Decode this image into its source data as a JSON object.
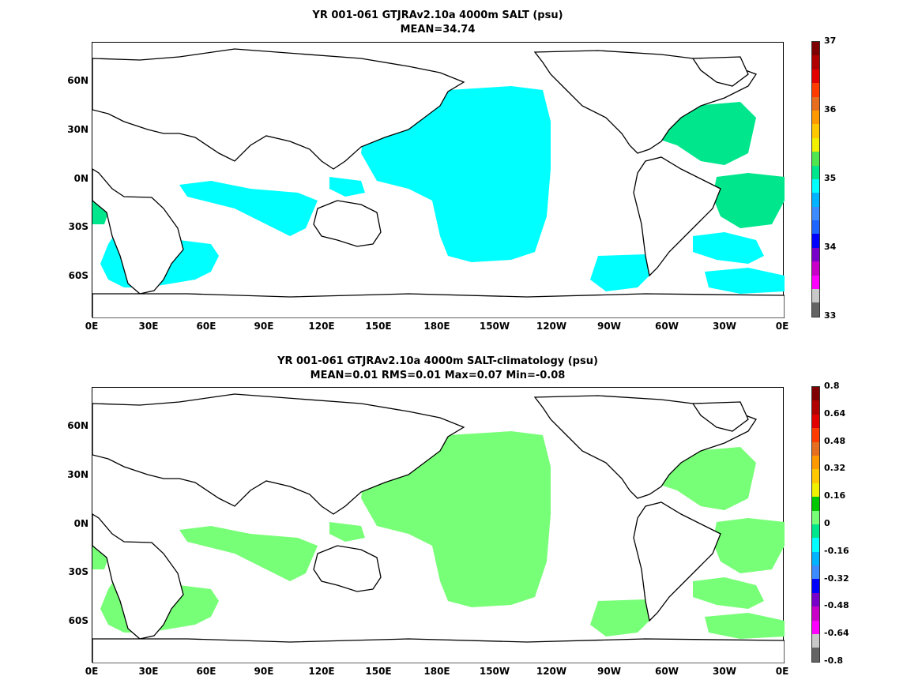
{
  "panels": [
    {
      "title_line1": "YR 001-061 GTJRAv2.10a 4000m SALT (psu)",
      "title_line2": "MEAN=34.74",
      "colorbar_labels": [
        "37",
        "36",
        "35",
        "34",
        "33"
      ],
      "colorbar_colors": [
        "#7f0000",
        "#b00000",
        "#e30000",
        "#ff3c00",
        "#e66e1e",
        "#ff9900",
        "#ffc800",
        "#f0f000",
        "#50e650",
        "#00e68c",
        "#00ffff",
        "#00b4ff",
        "#3c8cff",
        "#1e64ff",
        "#0000ff",
        "#7800c8",
        "#c800c8",
        "#ff00ff",
        "#c8c8c8",
        "#646464"
      ],
      "fill_color": "#00ffff",
      "fill_color2": "#00e68c"
    },
    {
      "title_line1": "YR 001-061 GTJRAv2.10a 4000m SALT-climatology (psu)",
      "title_line2": "MEAN=0.01   RMS=0.01   Max=0.07   Min=-0.08",
      "colorbar_labels": [
        "0.8",
        "0.64",
        "0.48",
        "0.32",
        "0.16",
        "0",
        "-0.16",
        "-0.32",
        "-0.48",
        "-0.64",
        "-0.8"
      ],
      "colorbar_colors": [
        "#7f0000",
        "#b00000",
        "#e30000",
        "#ff3c00",
        "#e66e1e",
        "#ff9900",
        "#ffc800",
        "#f0f000",
        "#00c800",
        "#78ff78",
        "#00e68c",
        "#00ffff",
        "#00b4ff",
        "#3c8cff",
        "#0000ff",
        "#7800c8",
        "#c800c8",
        "#ff00ff",
        "#c8c8c8",
        "#646464"
      ],
      "fill_color": "#78ff78",
      "fill_color2": "#00e68c"
    }
  ],
  "lat_ticks": [
    "60N",
    "30N",
    "0N",
    "30S",
    "60S"
  ],
  "lon_ticks": [
    "0E",
    "30E",
    "60E",
    "90E",
    "120E",
    "150E",
    "180E",
    "150W",
    "120W",
    "90W",
    "60W",
    "30W",
    "0E"
  ]
}
